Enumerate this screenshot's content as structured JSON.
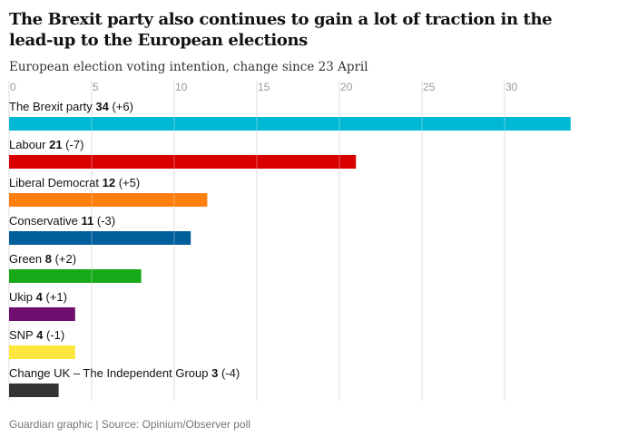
{
  "title": "The Brexit party also continues to gain a lot of traction in the lead-up to the European elections",
  "source": "Guardian graphic | Source: Opinium/Observer poll",
  "chart_data": {
    "type": "bar",
    "orientation": "horizontal",
    "title": "The Brexit party also continues to gain a lot of traction in the lead-up to the European elections",
    "subtitle": "European election voting intention, change since 23 April",
    "xlim": [
      0,
      34
    ],
    "ticks": [
      0,
      5,
      10,
      15,
      20,
      25,
      30
    ],
    "grid": true,
    "categories": [
      "The Brexit party",
      "Labour",
      "Liberal Democrat",
      "Conservative",
      "Green",
      "Ukip",
      "SNP",
      "Change UK – The Independent Group"
    ],
    "values": [
      34,
      21,
      12,
      11,
      8,
      4,
      4,
      3
    ],
    "changes": [
      "(+6)",
      "(-7)",
      "(+5)",
      "(-3)",
      "(+2)",
      "(+1)",
      "(-1)",
      "(-4)"
    ],
    "colors": [
      "#00b8d4",
      "#d90000",
      "#ff7f0f",
      "#005f9a",
      "#17a918",
      "#6e0f70",
      "#fde63e",
      "#333333"
    ]
  }
}
